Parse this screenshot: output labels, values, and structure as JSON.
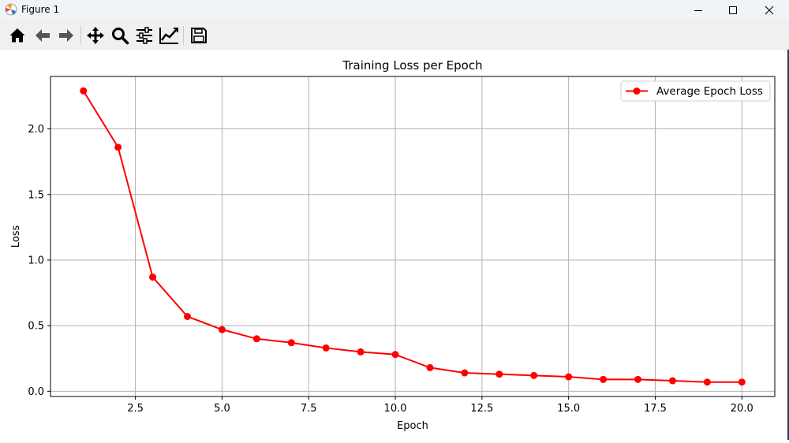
{
  "window": {
    "title": "Figure 1"
  },
  "toolbar": {
    "buttons": [
      "home-icon",
      "back-arrow-icon",
      "forward-arrow-icon",
      "pan-icon",
      "zoom-icon",
      "configure-subplots-icon",
      "edit-axis-icon",
      "save-icon"
    ]
  },
  "colors": {
    "series": "#ff0000",
    "grid": "#b0b0b0",
    "titlebar": "#eff4f9",
    "toolbar": "#f0f0f0"
  },
  "chart_data": {
    "type": "line",
    "title": "Training Loss per Epoch",
    "xlabel": "Epoch",
    "ylabel": "Loss",
    "xlim": [
      0.05,
      20.95
    ],
    "ylim": [
      -0.04,
      2.4
    ],
    "xticks": [
      2.5,
      5.0,
      7.5,
      10.0,
      12.5,
      15.0,
      17.5,
      20.0
    ],
    "xtick_labels": [
      "2.5",
      "5.0",
      "7.5",
      "10.0",
      "12.5",
      "15.0",
      "17.5",
      "20.0"
    ],
    "yticks": [
      0.0,
      0.5,
      1.0,
      1.5,
      2.0
    ],
    "ytick_labels": [
      "0.0",
      "0.5",
      "1.0",
      "1.5",
      "2.0"
    ],
    "grid": true,
    "legend_position": "top-right",
    "series": [
      {
        "name": "Average Epoch Loss",
        "color": "#ff0000",
        "marker": "circle",
        "x": [
          1,
          2,
          3,
          4,
          5,
          6,
          7,
          8,
          9,
          10,
          11,
          12,
          13,
          14,
          15,
          16,
          17,
          18,
          19,
          20
        ],
        "y": [
          2.29,
          1.86,
          0.87,
          0.57,
          0.47,
          0.4,
          0.37,
          0.33,
          0.3,
          0.28,
          0.18,
          0.14,
          0.13,
          0.12,
          0.11,
          0.09,
          0.09,
          0.08,
          0.07,
          0.07
        ]
      }
    ]
  }
}
